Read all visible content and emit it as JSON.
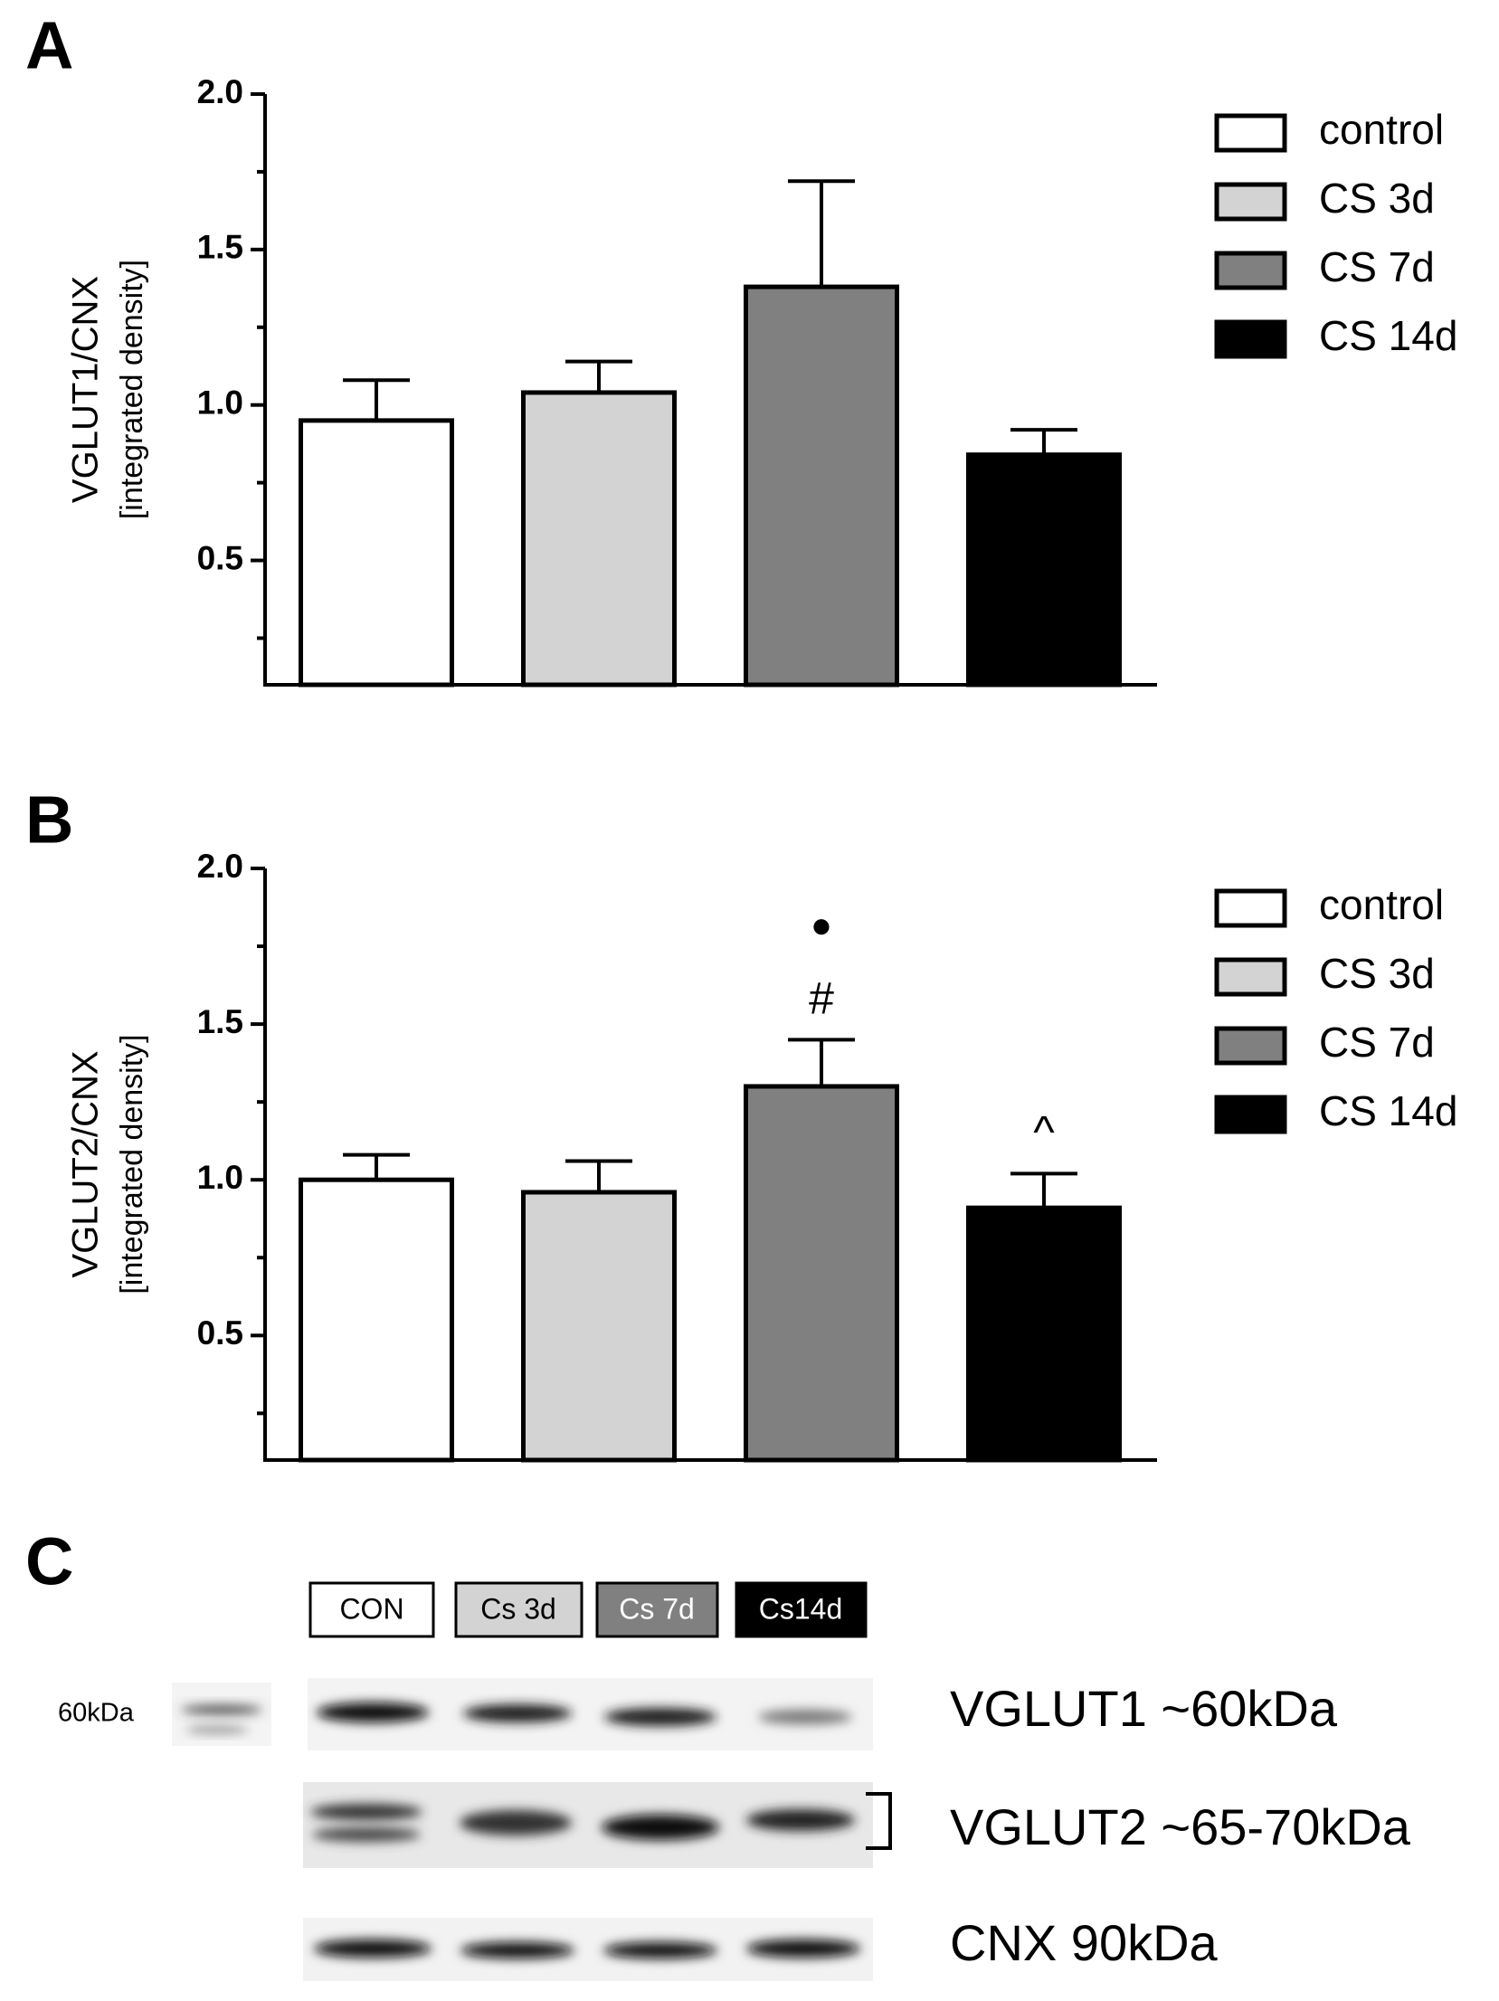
{
  "chart_data": [
    {
      "type": "bar",
      "panel": "A",
      "ylabel": [
        "VGLUT1/CNX",
        "[integrated density]"
      ],
      "ylim": [
        0.1,
        2.0
      ],
      "yticks": [
        {
          "value": 0.5,
          "label": "0.5"
        },
        {
          "value": 1.0,
          "label": "1.0"
        },
        {
          "value": 1.5,
          "label": "1.5"
        },
        {
          "value": 2.0,
          "label": "2.0"
        }
      ],
      "yminorticks": [
        0.25,
        0.75,
        1.25,
        1.75
      ],
      "legend": "upper right",
      "series": [
        {
          "name": "control",
          "color": "#ffffff",
          "values": [
            0.95
          ],
          "errors": [
            0.13
          ]
        },
        {
          "name": "CS 3d",
          "color": "#d3d3d3",
          "values": [
            1.04
          ],
          "errors": [
            0.1
          ]
        },
        {
          "name": "CS 7d",
          "color": "#808080",
          "values": [
            1.38
          ],
          "errors": [
            0.34
          ]
        },
        {
          "name": "CS 14d",
          "color": "#000000",
          "values": [
            0.84
          ],
          "errors": [
            0.08
          ]
        }
      ]
    },
    {
      "type": "bar",
      "panel": "B",
      "ylabel": [
        "VGLUT2/CNX",
        "[integrated density]"
      ],
      "ylim": [
        0.1,
        2.0
      ],
      "yticks": [
        {
          "value": 0.5,
          "label": "0.5"
        },
        {
          "value": 1.0,
          "label": "1.0"
        },
        {
          "value": 1.5,
          "label": "1.5"
        },
        {
          "value": 2.0,
          "label": "2.0"
        }
      ],
      "yminorticks": [
        0.25,
        0.75,
        1.25,
        1.75
      ],
      "legend": "upper right",
      "series": [
        {
          "name": "control",
          "color": "#ffffff",
          "values": [
            1.0
          ],
          "errors": [
            0.08
          ]
        },
        {
          "name": "CS 3d",
          "color": "#d3d3d3",
          "values": [
            0.96
          ],
          "errors": [
            0.1
          ]
        },
        {
          "name": "CS 7d",
          "color": "#808080",
          "values": [
            1.3
          ],
          "errors": [
            0.15
          ],
          "annotations": [
            "#",
            "●"
          ]
        },
        {
          "name": "CS 14d",
          "color": "#000000",
          "values": [
            0.91
          ],
          "errors": [
            0.11
          ],
          "annotations": [
            "^"
          ]
        }
      ]
    }
  ],
  "blot": {
    "panel": "C",
    "lanes": [
      "CON",
      "Cs 3d",
      "Cs 7d",
      "Cs14d"
    ],
    "marker": "60kDa",
    "bands": [
      "VGLUT1 ~60kDa",
      "VGLUT2 ~65-70kDa",
      "CNX 90kDa"
    ]
  }
}
